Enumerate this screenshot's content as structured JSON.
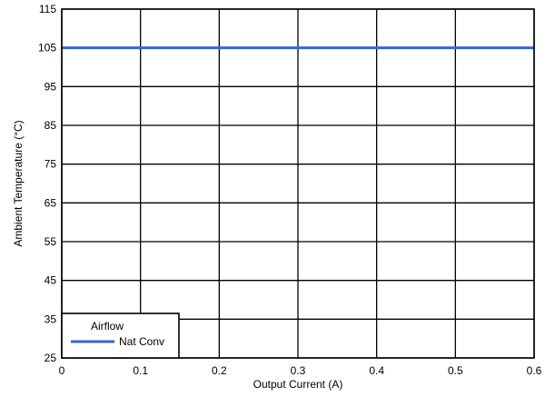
{
  "chart_data": {
    "type": "line",
    "title": "",
    "xlabel": "Output Current (A)",
    "ylabel": "Ambient Temperature (°C)",
    "xlim": [
      0,
      0.6
    ],
    "ylim": [
      25,
      115
    ],
    "xticks": [
      0,
      0.1,
      0.2,
      0.3,
      0.4,
      0.5,
      0.6
    ],
    "xtick_labels": [
      "0",
      "0.1",
      "0.2",
      "0.3",
      "0.4",
      "0.5",
      "0.6"
    ],
    "yticks": [
      25,
      35,
      45,
      55,
      65,
      75,
      85,
      95,
      105,
      115
    ],
    "ytick_labels": [
      "25",
      "35",
      "45",
      "55",
      "65",
      "75",
      "85",
      "95",
      "105",
      "115"
    ],
    "grid": true,
    "legend": {
      "title": "Airflow",
      "position": "bottom-left"
    },
    "series": [
      {
        "name": "Nat Conv",
        "color": "#3366dd",
        "x": [
          0,
          0.6
        ],
        "y": [
          105,
          105
        ]
      }
    ]
  }
}
